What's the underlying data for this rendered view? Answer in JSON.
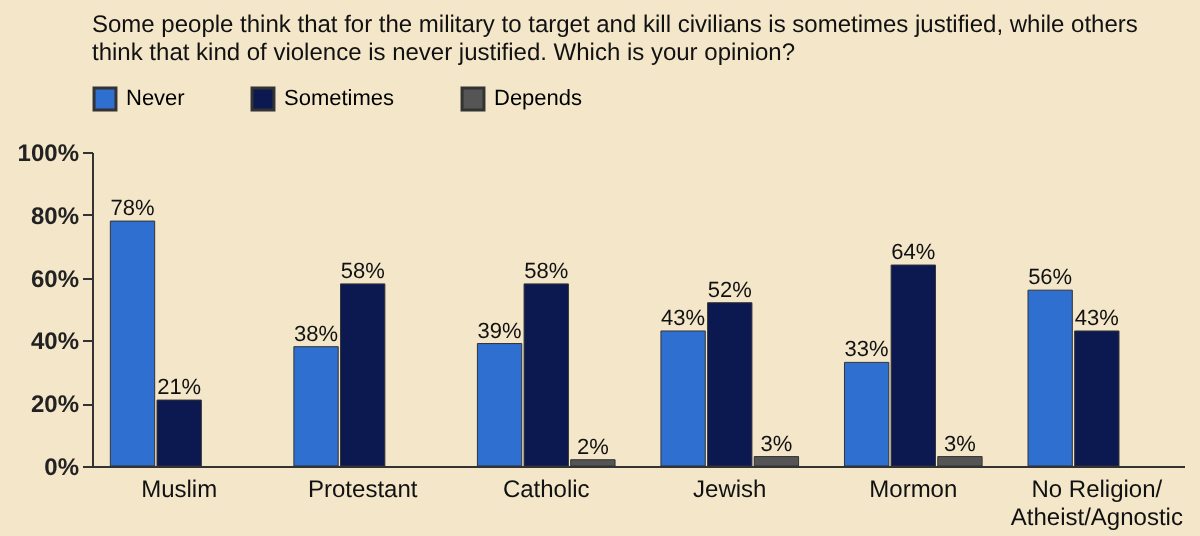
{
  "chart_data": {
    "type": "bar",
    "title": "Some people think that for the military to target and kill civilians is sometimes justified, while others think that kind of violence is never justified. Which is your opinion?",
    "categories": [
      "Muslim",
      "Protestant",
      "Catholic",
      "Jewish",
      "Mormon",
      "No Religion/ Atheist/Agnostic"
    ],
    "series": [
      {
        "name": "Never",
        "color": "#2f6fd0",
        "values": [
          78,
          38,
          39,
          43,
          33,
          56
        ],
        "value_labels": [
          "78%",
          "38%",
          "39%",
          "43%",
          "33%",
          "56%"
        ]
      },
      {
        "name": "Sometimes",
        "color": "#0c1850",
        "values": [
          21,
          58,
          58,
          52,
          64,
          43
        ],
        "value_labels": [
          "21%",
          "58%",
          "58%",
          "52%",
          "64%",
          "43%"
        ]
      },
      {
        "name": "Depends",
        "color": "#555555",
        "values": [
          null,
          null,
          2,
          3,
          3,
          null
        ],
        "value_labels": [
          null,
          null,
          "2%",
          "3%",
          "3%",
          null
        ]
      }
    ],
    "ylim": [
      0,
      100
    ],
    "yticks": [
      {
        "value": 0,
        "label": "0%"
      },
      {
        "value": 20,
        "label": "20%"
      },
      {
        "value": 40,
        "label": "40%"
      },
      {
        "value": 60,
        "label": "60%"
      },
      {
        "value": 80,
        "label": "80%"
      },
      {
        "value": 100,
        "label": "100%"
      }
    ],
    "grid": false,
    "legend": "top left"
  }
}
